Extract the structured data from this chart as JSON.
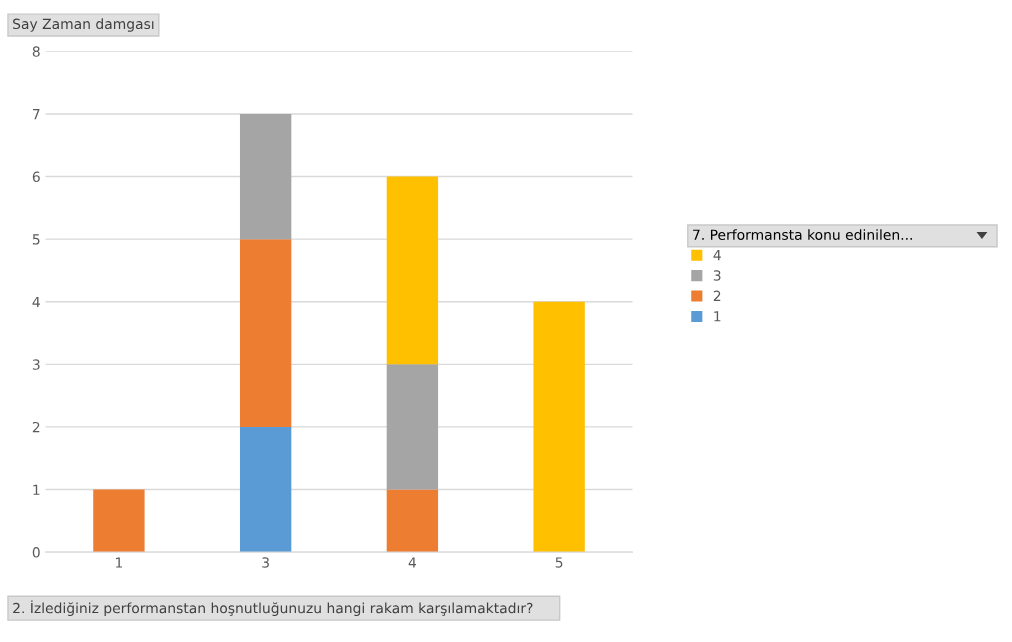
{
  "chart_data": {
    "type": "bar",
    "stacked": true,
    "ylabel": "Say Zaman damgası",
    "xlabel": "2. İzlediğiniz performanstan hoşnutluğunuzu hangi rakam karşılamaktadır?",
    "legend_title": "7. Performansta konu edinilen...",
    "categories": [
      "1",
      "3",
      "4",
      "5"
    ],
    "series": [
      {
        "name": "1",
        "color": "#5b9bd5",
        "values": [
          null,
          2,
          null,
          null
        ]
      },
      {
        "name": "2",
        "color": "#ed7d31",
        "values": [
          1,
          3,
          1,
          null
        ]
      },
      {
        "name": "3",
        "color": "#a5a5a5",
        "values": [
          null,
          2,
          2,
          null
        ]
      },
      {
        "name": "4",
        "color": "#ffc000",
        "values": [
          null,
          null,
          3,
          4
        ]
      }
    ],
    "ylim": [
      0,
      8
    ],
    "yticks": [
      0,
      1,
      2,
      3,
      4,
      5,
      6,
      7,
      8
    ],
    "grid": "y",
    "legend": "right"
  }
}
